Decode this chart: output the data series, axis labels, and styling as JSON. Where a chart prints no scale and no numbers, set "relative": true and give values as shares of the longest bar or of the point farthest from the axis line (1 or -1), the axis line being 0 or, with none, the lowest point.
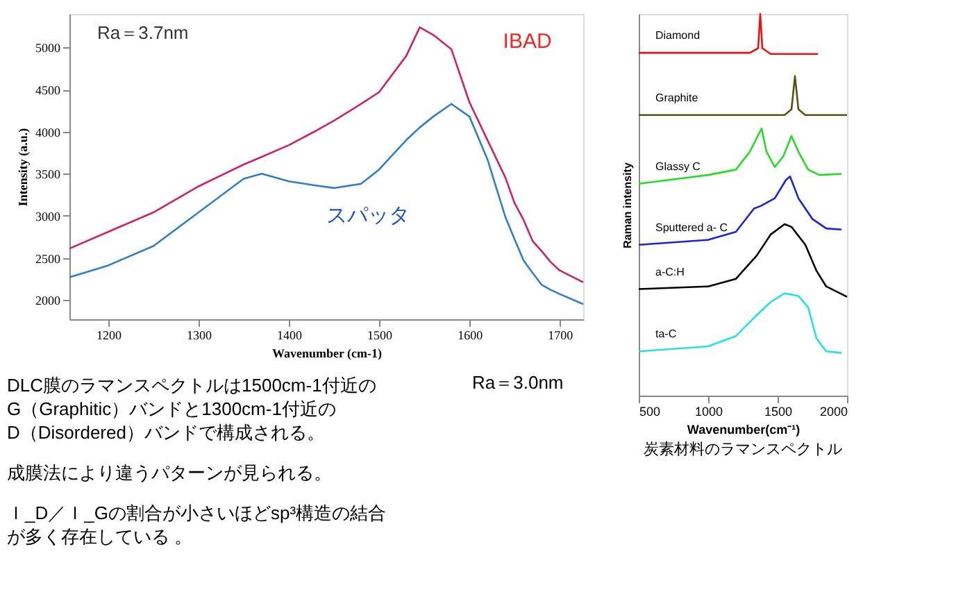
{
  "chart_data": [
    {
      "type": "line",
      "xlabel": "Wavenumber (cm-1)",
      "ylabel": "Intensity (a.u.)",
      "xlim": [
        1157,
        1726
      ],
      "ylim": [
        1770,
        5400
      ],
      "xticks": [
        1200,
        1300,
        1400,
        1500,
        1600,
        1700
      ],
      "yticks": [
        2000,
        2500,
        3000,
        3500,
        4000,
        4500,
        5000
      ],
      "grid": false,
      "legend": false,
      "x": [
        1157,
        1200,
        1250,
        1300,
        1350,
        1370,
        1400,
        1430,
        1450,
        1480,
        1500,
        1530,
        1545,
        1560,
        1580,
        1600,
        1620,
        1640,
        1650,
        1660,
        1670,
        1680,
        1690,
        1700,
        1726
      ],
      "series": [
        {
          "name": "IBAD",
          "color": "#cc2266",
          "values": [
            2610,
            2810,
            3040,
            3350,
            3610,
            3700,
            3840,
            4010,
            4130,
            4330,
            4470,
            4900,
            5240,
            5150,
            4980,
            4350,
            3900,
            3450,
            3150,
            2950,
            2700,
            2580,
            2450,
            2350,
            2210
          ]
        },
        {
          "name": "スパッタ",
          "color": "#2f7fc8",
          "values": [
            2270,
            2410,
            2640,
            3040,
            3440,
            3500,
            3410,
            3360,
            3330,
            3380,
            3550,
            3900,
            4050,
            4180,
            4330,
            4180,
            3670,
            2980,
            2720,
            2470,
            2320,
            2180,
            2120,
            2070,
            1950
          ]
        }
      ],
      "annotations": [
        "Ra＝3.7nm",
        "Ra＝3.0nm",
        "DLC膜のラマンスペクトルは1500cm-1付近の",
        "G（Graphitic）バンドと1300cm-1付近の",
        "D（Disordered）バンドで構成される。",
        "成膜法により違うパターンが見られる。",
        "Ｉ_D／Ｉ_Gの割合が小さいほどsp³構造の結合",
        "が多く存在している 。"
      ]
    },
    {
      "type": "line",
      "relative": true,
      "xlabel": "Wavenumber(cm⁻¹)",
      "ylabel": "Raman intensity",
      "xlim": [
        500,
        2000
      ],
      "xticks": [
        500,
        1000,
        1500,
        2000
      ],
      "grid": false,
      "legend": false,
      "series": [
        {
          "name": "Diamond",
          "color": "#ee1111",
          "x": [
            500,
            1300,
            1360,
            1375,
            1390,
            1450,
            1790
          ],
          "values": [
            0.898,
            0.898,
            0.91,
            1.0,
            0.91,
            0.895,
            0.895
          ]
        },
        {
          "name": "Graphite",
          "color": "#555511",
          "x": [
            500,
            1550,
            1600,
            1625,
            1650,
            1700,
            2000
          ],
          "values": [
            0.735,
            0.735,
            0.75,
            0.837,
            0.75,
            0.735,
            0.735
          ]
        },
        {
          "name": "Glassy C",
          "color": "#22dd22",
          "x": [
            500,
            1000,
            1200,
            1300,
            1385,
            1420,
            1480,
            1540,
            1600,
            1650,
            1720,
            1800,
            1960
          ],
          "values": [
            0.555,
            0.578,
            0.592,
            0.639,
            0.7,
            0.639,
            0.599,
            0.626,
            0.68,
            0.639,
            0.592,
            0.578,
            0.581
          ]
        },
        {
          "name": "Sputtered a- C",
          "color": "#1a22dd",
          "x": [
            500,
            1000,
            1200,
            1330,
            1380,
            1480,
            1560,
            1590,
            1650,
            1750,
            1850,
            1960
          ],
          "values": [
            0.395,
            0.408,
            0.429,
            0.49,
            0.497,
            0.517,
            0.565,
            0.574,
            0.517,
            0.463,
            0.438,
            0.435
          ]
        },
        {
          "name": "a-C:H",
          "color": "#000000",
          "x": [
            500,
            1000,
            1200,
            1350,
            1450,
            1550,
            1600,
            1700,
            1780,
            1850,
            2000
          ],
          "values": [
            0.279,
            0.286,
            0.306,
            0.367,
            0.422,
            0.449,
            0.442,
            0.395,
            0.327,
            0.286,
            0.259
          ]
        },
        {
          "name": "ta-C",
          "color": "#22e0e8",
          "x": [
            500,
            1000,
            1200,
            1330,
            1450,
            1550,
            1650,
            1720,
            1780,
            1850,
            1960
          ],
          "values": [
            0.116,
            0.129,
            0.156,
            0.204,
            0.245,
            0.268,
            0.261,
            0.231,
            0.15,
            0.116,
            0.112
          ]
        }
      ],
      "annotations": [
        "炭素材料のラマンスペクトル"
      ]
    }
  ]
}
